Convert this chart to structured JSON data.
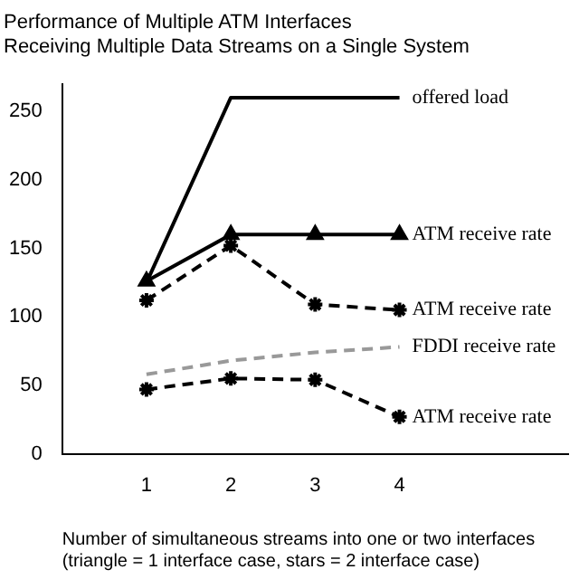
{
  "chart_data": {
    "type": "line",
    "title": "Performance of Multiple ATM Interfaces\nReceiving Multiple Data Streams on a Single System",
    "xlabel": "Number of simultaneous streams into one or two interfaces\n(triangle = 1 interface case, stars = 2 interface case)",
    "x": [
      1,
      2,
      3,
      4
    ],
    "xlim": [
      0,
      6
    ],
    "xticks": [
      1,
      2,
      3,
      4
    ],
    "ylim": [
      0,
      270
    ],
    "yticks": [
      0,
      50,
      100,
      150,
      200,
      250
    ],
    "grid": false,
    "legend": false,
    "series": [
      {
        "name": "offered load",
        "color": "#000000",
        "values": [
          125,
          260,
          260,
          260
        ],
        "marker": "none",
        "line_style": "solid"
      },
      {
        "name": "ATM receive rate",
        "color": "#000000",
        "values": [
          126,
          160,
          160,
          160
        ],
        "marker": "triangle",
        "line_style": "solid"
      },
      {
        "name": "ATM receive rate",
        "color": "#000000",
        "values": [
          112,
          152,
          109,
          105
        ],
        "marker": "cross",
        "line_style": "dashed"
      },
      {
        "name": "FDDI receive rate",
        "color": "#999999",
        "values": [
          58,
          68,
          74,
          78
        ],
        "marker": "none",
        "line_style": "dashed"
      },
      {
        "name": "ATM receive rate",
        "color": "#000000",
        "values": [
          47,
          55,
          54,
          27
        ],
        "marker": "cross",
        "line_style": "dashed"
      }
    ]
  }
}
